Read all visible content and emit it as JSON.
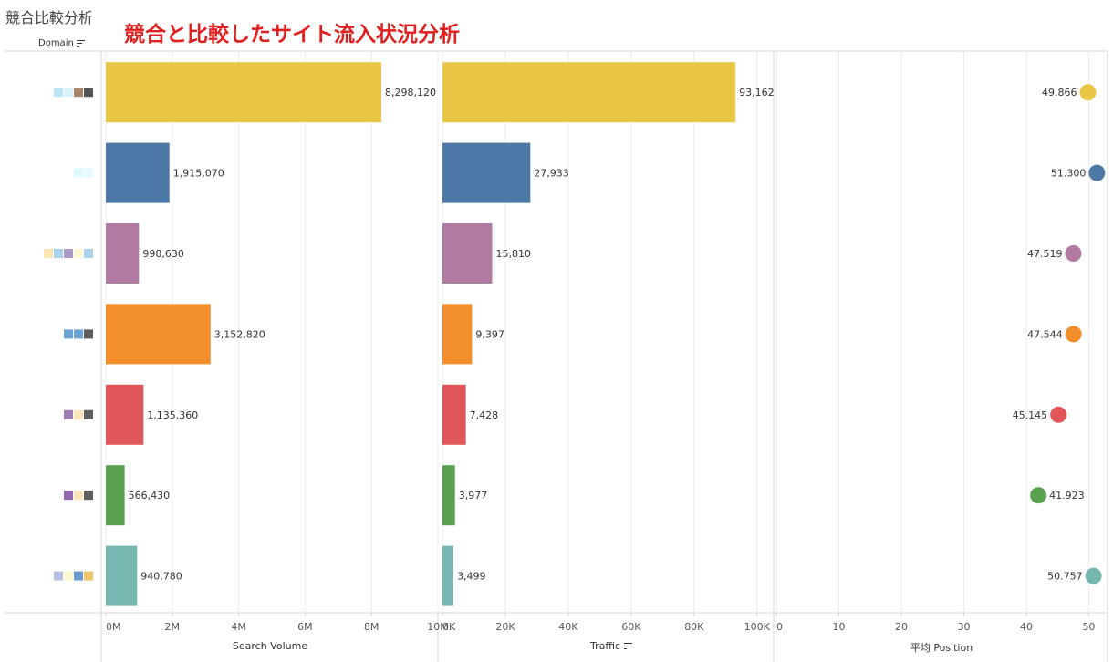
{
  "sheet_title": "競合比較分析",
  "headline": "競合と比較したサイト流入状況分析",
  "domain_header": "Domain",
  "sort_icon": "sort-descending-icon",
  "colors": {
    "gridline": "#ececec",
    "divider": "#d4d4d4",
    "rows": [
      "#e9c645",
      "#4e79a7",
      "#b07aa1",
      "#f28e2b",
      "#e15759",
      "#59a14f",
      "#76b7b2"
    ]
  },
  "domain_swatches": [
    [
      "#b9e6f6",
      "#d8f4fb",
      "#a88566",
      "#555555"
    ],
    [
      "#def9fb",
      "#e6fbfd"
    ],
    [
      "#ffe5b3",
      "#a7d3f1",
      "#a99ac8",
      "#fdf7cf",
      "#a7d3f1"
    ],
    [
      "#6aa4d6",
      "#6aa4d6",
      "#5b5b5b"
    ],
    [
      "#9e7cb6",
      "#fde3b8",
      "#5e5e5e"
    ],
    [
      "#946aaf",
      "#fde3b8",
      "#5e5e5e"
    ],
    [
      "#b9bfe2",
      "#fdf7cf",
      "#6a9bd0",
      "#f2c46b"
    ]
  ],
  "chart_data": [
    {
      "type": "bar",
      "orientation": "horizontal",
      "xlabel": "Search Volume",
      "xlim": [
        0,
        10000000
      ],
      "ticks": [
        0,
        2000000,
        4000000,
        6000000,
        8000000,
        10000000
      ],
      "tick_labels": [
        "0M",
        "2M",
        "4M",
        "6M",
        "8M",
        "10M"
      ],
      "values": [
        8298120,
        1915070,
        998630,
        3152820,
        1135360,
        566430,
        940780
      ],
      "labels": [
        "8,298,120",
        "1,915,070",
        "998,630",
        "3,152,820",
        "1,135,360",
        "566,430",
        "940,780"
      ],
      "grid": true
    },
    {
      "type": "bar",
      "orientation": "horizontal",
      "xlabel": "Traffic",
      "xlim": [
        0,
        105000
      ],
      "ticks": [
        0,
        20000,
        40000,
        60000,
        80000,
        100000
      ],
      "tick_labels": [
        "0K",
        "20K",
        "40K",
        "60K",
        "80K",
        "100K"
      ],
      "values": [
        93162,
        27933,
        15810,
        9397,
        7428,
        3977,
        3499
      ],
      "labels": [
        "93,162",
        "27,933",
        "15,810",
        "9,397",
        "7,428",
        "3,977",
        "3,499"
      ],
      "grid": true
    },
    {
      "type": "scatter",
      "xlabel": "平均 Position",
      "xlim": [
        0,
        53
      ],
      "ticks": [
        0,
        10,
        20,
        30,
        40,
        50
      ],
      "tick_labels": [
        "0",
        "10",
        "20",
        "30",
        "40",
        "50"
      ],
      "values": [
        49.866,
        51.3,
        47.519,
        47.544,
        45.145,
        41.923,
        50.757
      ],
      "labels": [
        "49.866",
        "51.300",
        "47.519",
        "47.544",
        "45.145",
        "41.923",
        "50.757"
      ],
      "grid": true
    }
  ]
}
